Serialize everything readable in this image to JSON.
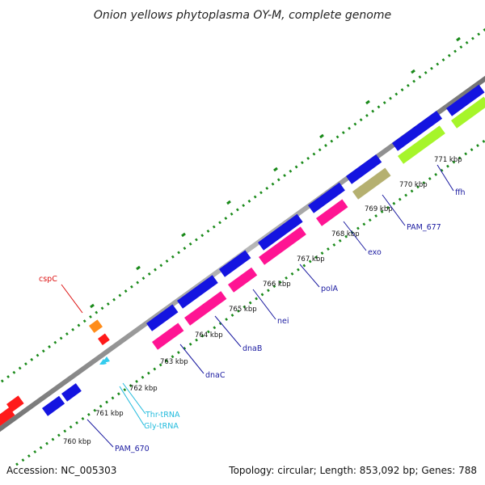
{
  "title": "Onion yellows phytoplasma OY-M, complete genome",
  "footer": {
    "accession": "Accession: NC_005303",
    "summary": "Topology: circular; Length: 853,092 bp; Genes: 788"
  },
  "colors": {
    "backbone": "#8c8c8c",
    "ruler_ticks": "#1a8a1a",
    "cds_forward": "#1414e0",
    "cds_reverse": "#ff1493",
    "cds_red": "#ff1a1a",
    "cds_orange": "#ff8c1a",
    "cds_khaki": "#b5b070",
    "cds_lime": "#a6f52a",
    "trna": "#33ccee",
    "label_blue": "#1a1aa0",
    "label_cyan": "#22bbdd",
    "label_red": "#dd1111"
  },
  "ruler": {
    "unit": "kbp",
    "labels": [
      "760 kbp",
      "761 kbp",
      "762 kbp",
      "763 kbp",
      "764 kbp",
      "765 kbp",
      "766 kbp",
      "767 kbp",
      "768 kbp",
      "769 kbp",
      "770 kbp",
      "771 kbp"
    ]
  },
  "gene_labels": [
    "cspC",
    "Thr-tRNA",
    "Gly-tRNA",
    "PAM_670",
    "dnaC",
    "dnaB",
    "nei",
    "polA",
    "exo",
    "PAM_677",
    "ffh"
  ]
}
